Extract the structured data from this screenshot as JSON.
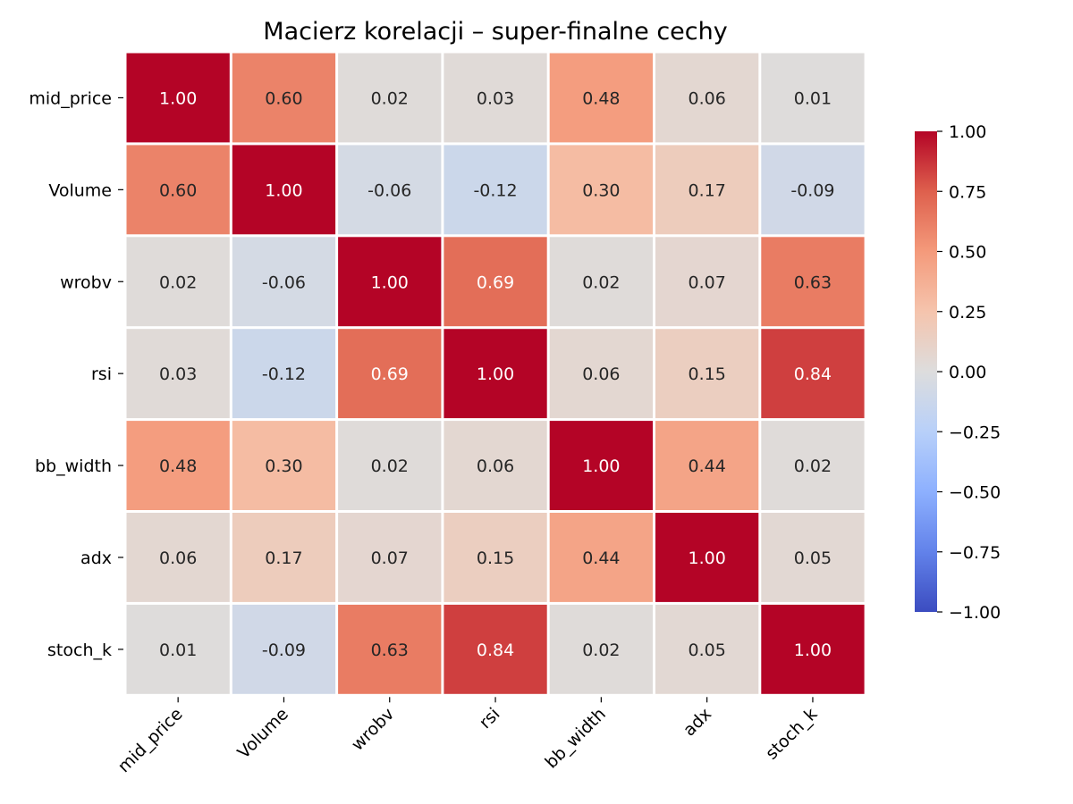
{
  "chart_data": {
    "type": "heatmap",
    "title": "Macierz korelacji – super-finalne cechy",
    "x_labels": [
      "mid_price",
      "Volume",
      "wrobv",
      "rsi",
      "bb_width",
      "adx",
      "stoch_k"
    ],
    "y_labels": [
      "mid_price",
      "Volume",
      "wrobv",
      "rsi",
      "bb_width",
      "adx",
      "stoch_k"
    ],
    "values": [
      [
        1.0,
        0.6,
        0.02,
        0.03,
        0.48,
        0.06,
        0.01
      ],
      [
        0.6,
        1.0,
        -0.06,
        -0.12,
        0.3,
        0.17,
        -0.09
      ],
      [
        0.02,
        -0.06,
        1.0,
        0.69,
        0.02,
        0.07,
        0.63
      ],
      [
        0.03,
        -0.12,
        0.69,
        1.0,
        0.06,
        0.15,
        0.84
      ],
      [
        0.48,
        0.3,
        0.02,
        0.06,
        1.0,
        0.44,
        0.02
      ],
      [
        0.06,
        0.17,
        0.07,
        0.15,
        0.44,
        1.0,
        0.05
      ],
      [
        0.01,
        -0.09,
        0.63,
        0.84,
        0.02,
        0.05,
        1.0
      ]
    ],
    "value_format": "2 decimals",
    "colormap": "coolwarm",
    "vmin": -1.0,
    "vmax": 1.0,
    "colorbar_ticks": [
      "1.00",
      "0.75",
      "0.50",
      "0.25",
      "0.00",
      "−0.25",
      "−0.50",
      "−0.75",
      "−1.00"
    ],
    "colorbar_tick_values": [
      1.0,
      0.75,
      0.5,
      0.25,
      0.0,
      -0.25,
      -0.5,
      -0.75,
      -1.0
    ],
    "colorbar_placement": "right"
  }
}
